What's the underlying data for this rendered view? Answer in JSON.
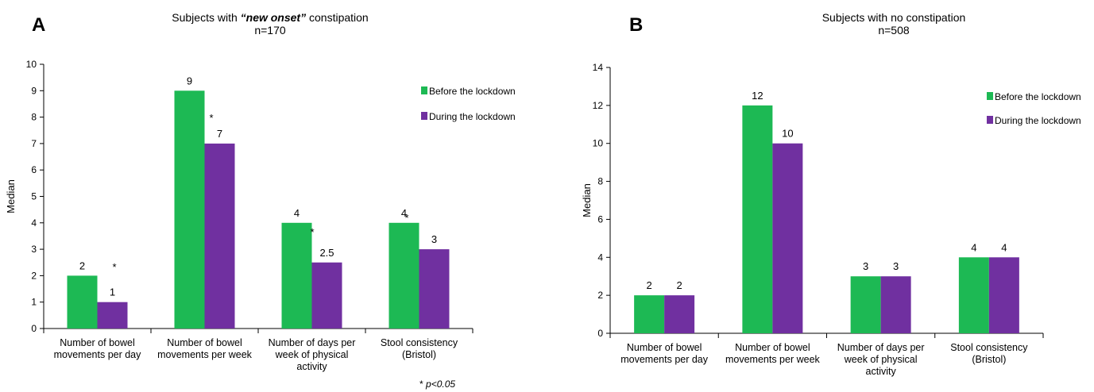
{
  "colors": {
    "before": "#1db954",
    "during": "#7030a0",
    "axis": "#000000"
  },
  "chart_data": [
    {
      "type": "bar",
      "panel_label": "A",
      "title_prefix": "Subjects with ",
      "title_emphasis": "“new onset”",
      "title_suffix": " constipation",
      "subtitle": "n=170",
      "ylabel": "Median",
      "ylim": [
        0,
        10
      ],
      "yticks": [
        0,
        1,
        2,
        3,
        4,
        5,
        6,
        7,
        8,
        9,
        10
      ],
      "categories": [
        [
          "Number of bowel",
          "movements per day"
        ],
        [
          "Number of bowel",
          "movements per week"
        ],
        [
          "Number of days per",
          "week of physical",
          "activity"
        ],
        [
          "Stool consistency",
          "(Bristol)"
        ]
      ],
      "series": [
        {
          "name": "Before the lockdown",
          "values": [
            2,
            9,
            4,
            4
          ],
          "labels": [
            "2",
            "9",
            "4",
            "4"
          ]
        },
        {
          "name": "During the lockdown",
          "values": [
            1,
            7,
            2.5,
            3
          ],
          "labels": [
            "1",
            "7",
            "2.5",
            "3"
          ]
        }
      ],
      "significance_marks": [
        "*",
        "*",
        "*",
        "*"
      ],
      "footnote_star": "* ",
      "footnote_text": "p<0.05",
      "grid": false,
      "legend_position": "top-right"
    },
    {
      "type": "bar",
      "panel_label": "B",
      "title_prefix": "Subjects with no constipation",
      "title_emphasis": "",
      "title_suffix": "",
      "subtitle": "n=508",
      "ylabel": "Median",
      "ylim": [
        0,
        14
      ],
      "yticks": [
        0,
        2,
        4,
        6,
        8,
        10,
        12,
        14
      ],
      "categories": [
        [
          "Number of bowel",
          "movements per day"
        ],
        [
          "Number of bowel",
          "movements per week"
        ],
        [
          "Number of days per",
          "week of physical",
          "activity"
        ],
        [
          "Stool consistency",
          "(Bristol)"
        ]
      ],
      "series": [
        {
          "name": "Before the lockdown",
          "values": [
            2,
            12,
            3,
            4
          ],
          "labels": [
            "2",
            "12",
            "3",
            "4"
          ]
        },
        {
          "name": "During the lockdown",
          "values": [
            2,
            10,
            3,
            4
          ],
          "labels": [
            "2",
            "10",
            "3",
            "4"
          ]
        }
      ],
      "grid": false,
      "legend_position": "top-right"
    }
  ]
}
